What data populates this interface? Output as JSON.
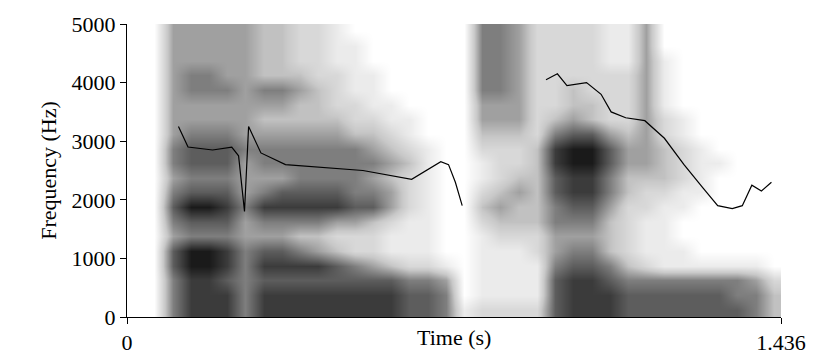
{
  "chart_data": {
    "type": "heatmap",
    "x_label": "Time (s)",
    "y_label": "Frequency (Hz)",
    "xlim": [
      0,
      1.436
    ],
    "xticks": [
      0,
      1.436
    ],
    "ylim": [
      0,
      5000
    ],
    "yticks": [
      0,
      1000,
      2000,
      3000,
      4000,
      5000
    ],
    "cells": {
      "x": [
        0.02,
        0.06,
        0.1,
        0.14,
        0.18,
        0.22,
        0.26,
        0.3,
        0.34,
        0.38,
        0.42,
        0.46,
        0.5,
        0.54,
        0.58,
        0.62,
        0.66,
        0.7,
        0.74,
        0.78,
        0.82,
        0.86,
        0.9,
        0.94,
        0.98,
        1.02,
        1.06,
        1.1,
        1.14,
        1.18,
        1.22,
        1.26,
        1.3,
        1.34,
        1.38,
        1.42
      ],
      "y": [
        125,
        375,
        625,
        875,
        1125,
        1375,
        1625,
        1875,
        2125,
        2375,
        2625,
        2875,
        3125,
        3375,
        3625,
        3875,
        4125,
        4375,
        4625,
        4875
      ],
      "z": [
        [
          0,
          0,
          5,
          7,
          7,
          7,
          5,
          7,
          7,
          7,
          7,
          7,
          7,
          7,
          7,
          6,
          6,
          5,
          1,
          2,
          2,
          2,
          2,
          6,
          7,
          7,
          7,
          6,
          6,
          6,
          6,
          6,
          6,
          6,
          5,
          3
        ],
        [
          0,
          0,
          5,
          7,
          7,
          7,
          5,
          7,
          7,
          7,
          7,
          7,
          7,
          7,
          7,
          6,
          6,
          5,
          0,
          1,
          1,
          1,
          1,
          6,
          7,
          7,
          7,
          6,
          6,
          6,
          6,
          6,
          6,
          5,
          5,
          3
        ],
        [
          0,
          0,
          5,
          7,
          7,
          6,
          5,
          6,
          6,
          6,
          6,
          6,
          6,
          6,
          6,
          5,
          5,
          4,
          0,
          1,
          1,
          1,
          1,
          6,
          7,
          7,
          6,
          5,
          5,
          5,
          5,
          5,
          5,
          5,
          4,
          2
        ],
        [
          0,
          0,
          6,
          8,
          8,
          7,
          5,
          7,
          7,
          7,
          7,
          6,
          5,
          4,
          3,
          2,
          2,
          1,
          0,
          1,
          1,
          1,
          1,
          5,
          6,
          6,
          5,
          3,
          2,
          1,
          1,
          1,
          1,
          1,
          1,
          0
        ],
        [
          0,
          0,
          6,
          8,
          8,
          7,
          5,
          6,
          6,
          5,
          4,
          3,
          2,
          2,
          1,
          1,
          1,
          0,
          0,
          1,
          1,
          1,
          2,
          4,
          5,
          5,
          3,
          2,
          1,
          1,
          1,
          0,
          0,
          0,
          0,
          0
        ],
        [
          0,
          0,
          4,
          5,
          5,
          5,
          4,
          4,
          4,
          3,
          3,
          2,
          2,
          2,
          1,
          1,
          1,
          0,
          0,
          1,
          2,
          2,
          2,
          4,
          4,
          4,
          3,
          2,
          1,
          1,
          0,
          0,
          0,
          0,
          0,
          0
        ],
        [
          0,
          0,
          5,
          6,
          6,
          6,
          4,
          5,
          5,
          5,
          5,
          4,
          4,
          3,
          2,
          1,
          1,
          0,
          0,
          2,
          3,
          3,
          3,
          5,
          5,
          5,
          3,
          2,
          1,
          1,
          0,
          0,
          0,
          0,
          0,
          0
        ],
        [
          0,
          0,
          6,
          8,
          8,
          7,
          5,
          7,
          7,
          7,
          7,
          7,
          6,
          6,
          4,
          2,
          1,
          0,
          0,
          3,
          4,
          3,
          3,
          5,
          6,
          6,
          4,
          2,
          2,
          1,
          1,
          0,
          0,
          0,
          0,
          0
        ],
        [
          0,
          0,
          5,
          6,
          6,
          6,
          4,
          5,
          6,
          6,
          6,
          6,
          5,
          5,
          4,
          2,
          1,
          0,
          0,
          2,
          3,
          4,
          3,
          6,
          7,
          7,
          5,
          3,
          2,
          2,
          1,
          1,
          0,
          0,
          0,
          0
        ],
        [
          0,
          0,
          4,
          5,
          5,
          5,
          4,
          4,
          4,
          5,
          5,
          5,
          5,
          4,
          3,
          2,
          1,
          0,
          0,
          1,
          2,
          3,
          3,
          6,
          7,
          7,
          5,
          3,
          3,
          3,
          2,
          1,
          0,
          0,
          0,
          0
        ],
        [
          0,
          0,
          5,
          6,
          6,
          6,
          4,
          5,
          5,
          5,
          5,
          5,
          5,
          5,
          4,
          3,
          1,
          0,
          0,
          1,
          2,
          2,
          3,
          7,
          8,
          8,
          6,
          4,
          4,
          3,
          2,
          1,
          1,
          0,
          0,
          0
        ],
        [
          0,
          0,
          5,
          6,
          6,
          6,
          5,
          5,
          5,
          5,
          5,
          5,
          5,
          4,
          3,
          2,
          1,
          0,
          0,
          2,
          2,
          2,
          3,
          7,
          8,
          8,
          6,
          4,
          4,
          3,
          2,
          1,
          0,
          0,
          0,
          0
        ],
        [
          0,
          0,
          4,
          5,
          5,
          5,
          4,
          4,
          4,
          4,
          4,
          4,
          3,
          3,
          2,
          1,
          0,
          0,
          0,
          3,
          3,
          3,
          2,
          5,
          6,
          6,
          4,
          3,
          4,
          2,
          1,
          0,
          0,
          0,
          0,
          0
        ],
        [
          0,
          0,
          4,
          4,
          4,
          4,
          4,
          3,
          3,
          3,
          3,
          3,
          2,
          2,
          1,
          1,
          0,
          0,
          0,
          4,
          4,
          4,
          2,
          3,
          4,
          3,
          2,
          2,
          4,
          2,
          1,
          0,
          0,
          0,
          0,
          0
        ],
        [
          0,
          0,
          4,
          4,
          4,
          4,
          4,
          4,
          4,
          3,
          3,
          2,
          2,
          1,
          1,
          0,
          0,
          0,
          0,
          4,
          4,
          4,
          2,
          2,
          3,
          3,
          2,
          2,
          4,
          1,
          0,
          0,
          0,
          0,
          0,
          0
        ],
        [
          0,
          0,
          4,
          5,
          5,
          5,
          4,
          5,
          5,
          4,
          3,
          2,
          1,
          1,
          0,
          0,
          0,
          0,
          0,
          5,
          5,
          4,
          2,
          2,
          3,
          2,
          2,
          2,
          4,
          1,
          0,
          0,
          0,
          0,
          0,
          0
        ],
        [
          0,
          0,
          4,
          5,
          5,
          4,
          4,
          3,
          3,
          3,
          2,
          2,
          1,
          1,
          0,
          0,
          0,
          0,
          0,
          5,
          5,
          4,
          2,
          2,
          2,
          2,
          2,
          2,
          4,
          1,
          0,
          0,
          0,
          0,
          0,
          0
        ],
        [
          0,
          0,
          4,
          4,
          4,
          4,
          4,
          3,
          3,
          2,
          2,
          1,
          1,
          0,
          0,
          0,
          0,
          0,
          0,
          5,
          5,
          4,
          2,
          2,
          2,
          2,
          1,
          1,
          4,
          1,
          0,
          0,
          0,
          0,
          0,
          0
        ],
        [
          0,
          0,
          4,
          4,
          4,
          4,
          4,
          3,
          3,
          2,
          2,
          1,
          1,
          0,
          0,
          0,
          0,
          0,
          0,
          5,
          5,
          4,
          2,
          2,
          2,
          2,
          1,
          1,
          4,
          0,
          0,
          0,
          0,
          0,
          0,
          0
        ],
        [
          0,
          0,
          4,
          4,
          4,
          4,
          4,
          3,
          3,
          2,
          2,
          1,
          0,
          0,
          0,
          0,
          0,
          0,
          0,
          5,
          5,
          4,
          2,
          2,
          2,
          2,
          1,
          1,
          4,
          0,
          0,
          0,
          0,
          0,
          0,
          0
        ]
      ]
    },
    "series": [
      {
        "type": "line",
        "color": "#000000",
        "x": [
          0.113,
          0.134,
          0.188,
          0.23,
          0.245,
          0.258,
          0.267,
          0.294,
          0.348,
          0.433,
          0.518,
          0.625,
          0.657,
          0.689,
          0.706,
          0.721,
          0.736,
          0.828,
          0.92,
          0.945,
          0.966,
          1.009,
          1.041,
          1.063,
          1.095,
          1.137,
          1.18,
          1.223,
          1.265,
          1.297,
          1.329,
          1.351,
          1.372,
          1.393,
          1.415
        ],
        "values": [
          3250,
          2900,
          2850,
          2900,
          2750,
          1800,
          3250,
          2800,
          2600,
          2550,
          2500,
          2350,
          2500,
          2650,
          2600,
          2300,
          1900,
          null,
          4050,
          4150,
          3950,
          4000,
          3800,
          3500,
          3400,
          3350,
          3050,
          2600,
          2200,
          1900,
          1850,
          1900,
          2250,
          2150,
          2300
        ]
      }
    ]
  }
}
